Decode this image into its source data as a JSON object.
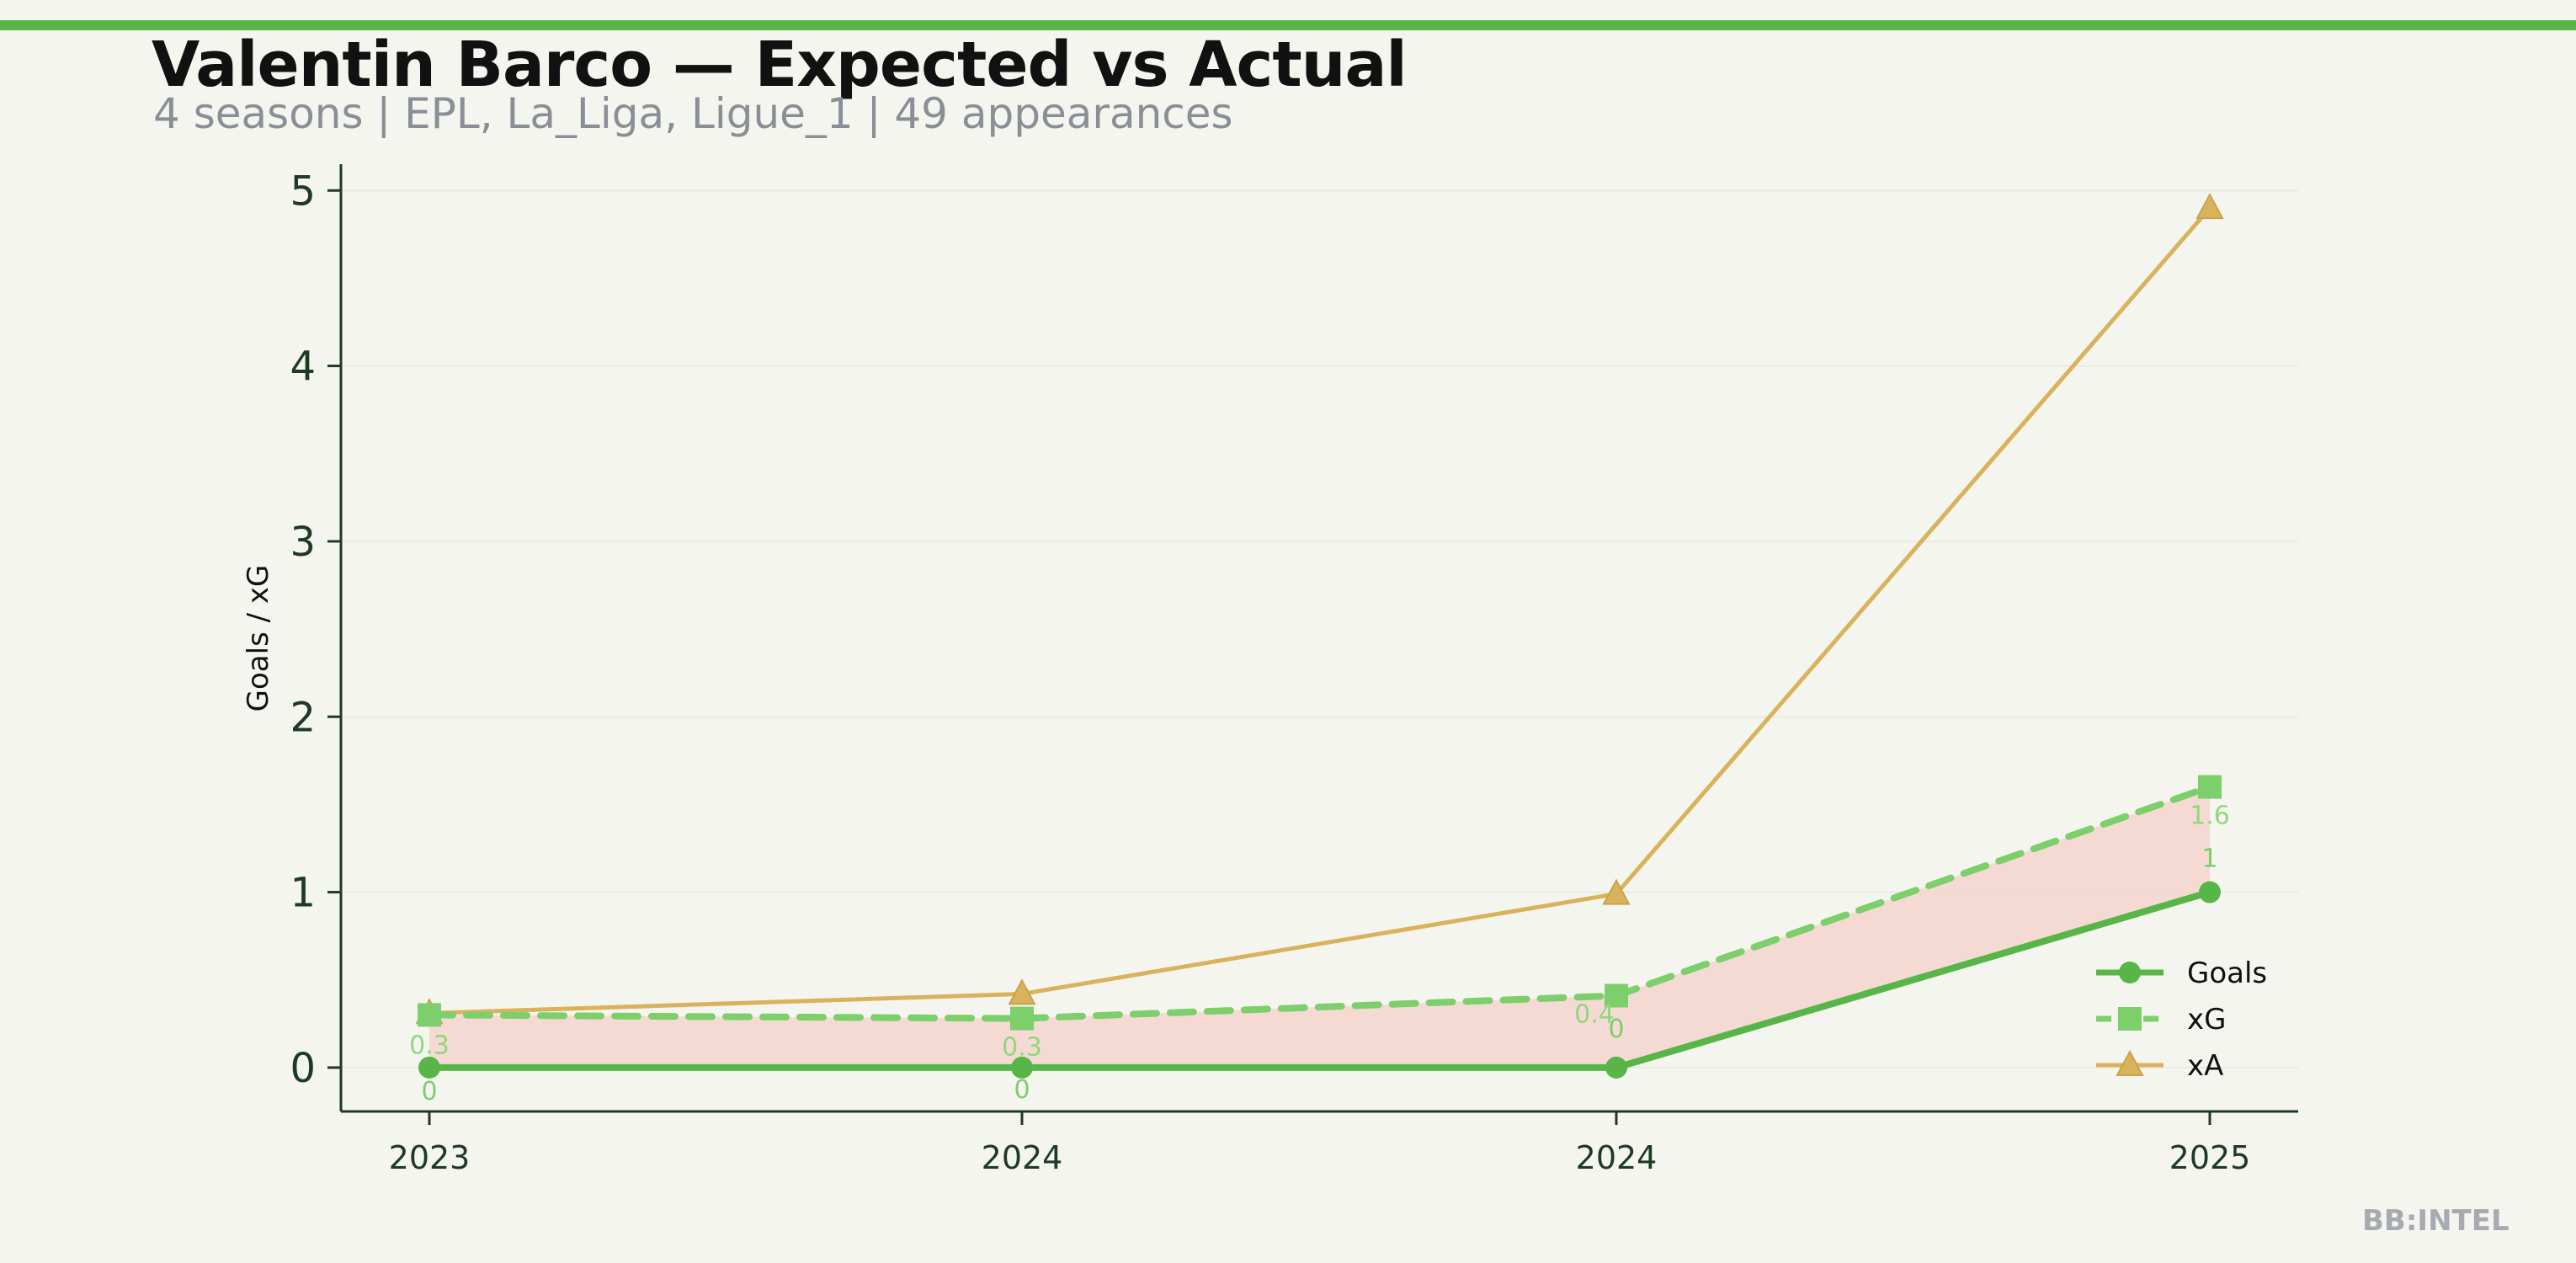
{
  "chart_data": {
    "type": "line",
    "title": "Valentin Barco — Expected vs Actual",
    "subtitle": "4 seasons | EPL, La_Liga, Ligue_1 | 49 appearances",
    "ylabel": "Goals / xG",
    "xlabel": "",
    "categories": [
      "2023",
      "2024",
      "2024",
      "2025"
    ],
    "ylim": [
      -0.25,
      5.15
    ],
    "yticks": [
      0,
      1,
      2,
      3,
      4,
      5
    ],
    "grid": true,
    "legend_position": "lower-right",
    "series": [
      {
        "name": "Goals",
        "values": [
          0,
          0,
          0,
          1
        ],
        "labels": [
          "0",
          "0",
          "0",
          "1"
        ],
        "color": "#58b548",
        "marker": "circle",
        "dash": "solid"
      },
      {
        "name": "xG",
        "values": [
          0.3,
          0.28,
          0.41,
          1.6
        ],
        "labels": [
          "0.3",
          "0.3",
          "0.4",
          "1.6"
        ],
        "color": "#7ccf6a",
        "marker": "square",
        "dash": "dashed"
      },
      {
        "name": "xA",
        "values": [
          0.31,
          0.42,
          0.99,
          4.9
        ],
        "labels": [],
        "color": "#d9b35c",
        "marker": "triangle",
        "dash": "solid"
      }
    ],
    "fill_between": {
      "series": [
        "Goals",
        "xG"
      ],
      "color": "#f5d5cf"
    },
    "watermark": "BB:INTEL"
  }
}
